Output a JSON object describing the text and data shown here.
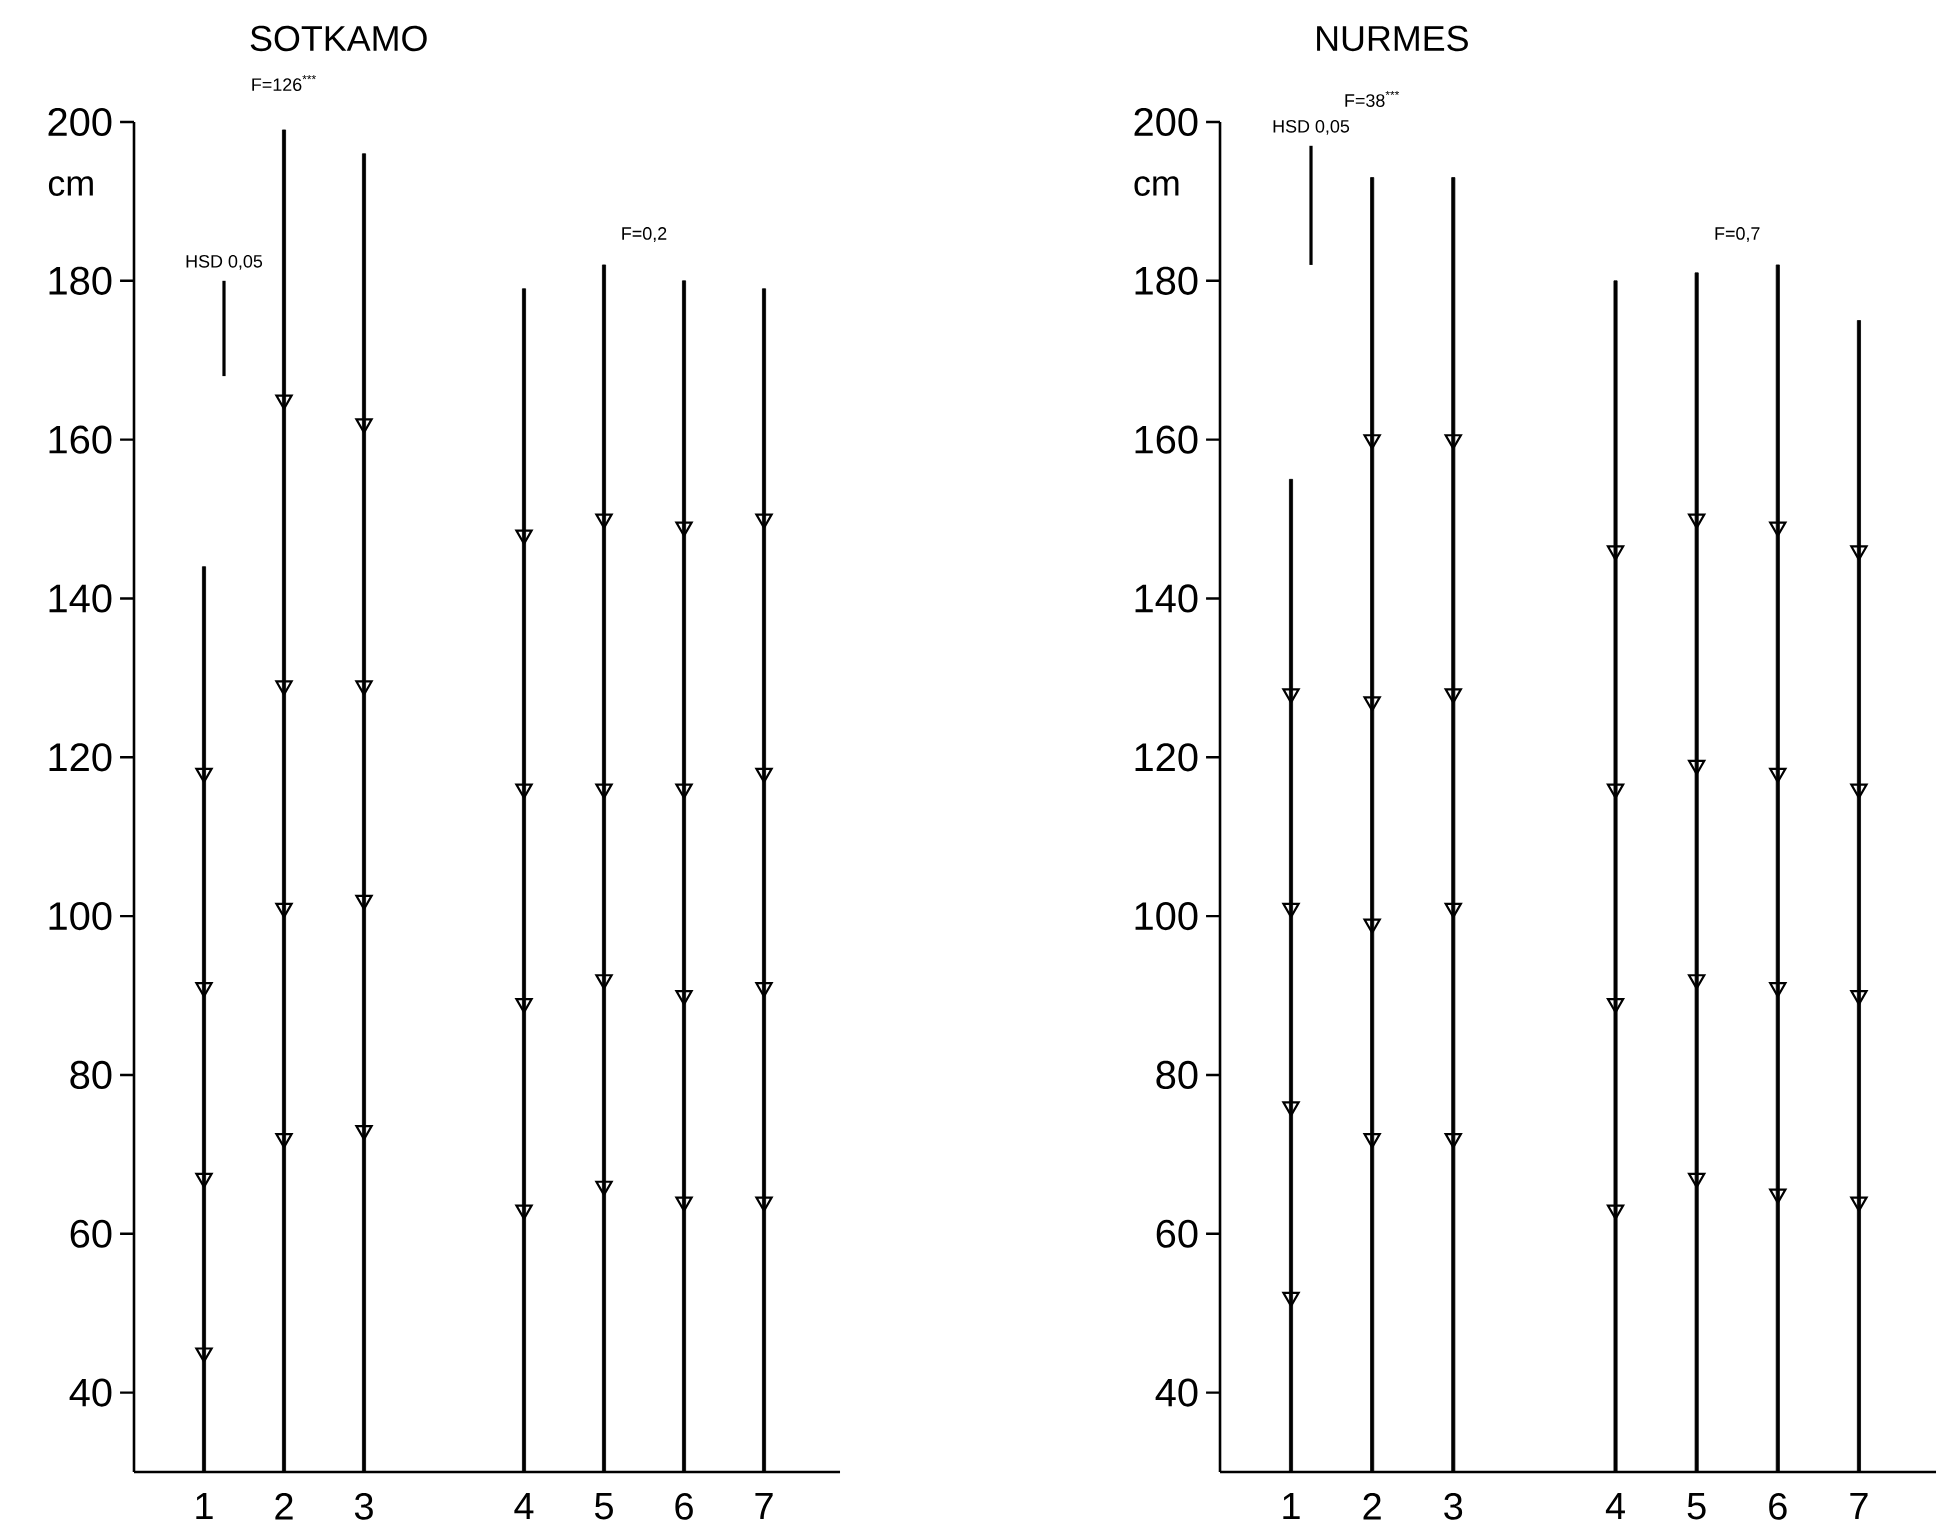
{
  "chart_data": [
    {
      "type": "bar",
      "title": "SOTKAMO",
      "ylabel": "cm",
      "ylim": [
        30,
        200
      ],
      "yticks": [
        40,
        60,
        80,
        100,
        120,
        140,
        160,
        180,
        200
      ],
      "categories": [
        "1",
        "2",
        "3",
        null,
        "4",
        "5",
        "6",
        "7"
      ],
      "marker": "triangle",
      "annotations": [
        "F=126$^{***}$",
        "F=0,2"
      ],
      "series": [
        {
          "type": "bar",
          "color": "#000000",
          "values": [
            144,
            199,
            196,
            null,
            179,
            182,
            180,
            179
          ]
        },
        {
          "type": "scatter",
          "color": "#000000",
          "values": [
            118,
            165,
            162,
            null,
            148,
            150,
            149,
            150
          ]
        },
        {
          "type": "scatter",
          "color": "#000000",
          "values": [
            91,
            129,
            129,
            null,
            116,
            116,
            116,
            118
          ]
        },
        {
          "type": "scatter",
          "color": "#000000",
          "values": [
            67,
            101,
            102,
            null,
            89,
            92,
            90,
            91
          ]
        },
        {
          "type": "scatter",
          "color": "#000000",
          "values": [
            45,
            72,
            73,
            null,
            63,
            66,
            64,
            64
          ]
        },
        {
          "type": "bar",
          "name": "HSD 0,05",
          "color": "#000000",
          "values": [
            12,
            null,
            null,
            null,
            null,
            null,
            null,
            null
          ],
          "base": [
            168,
            null,
            null,
            null,
            null,
            null,
            null,
            null
          ]
        }
      ]
    },
    {
      "type": "bar",
      "title": "NURMES",
      "ylabel": "cm",
      "ylim": [
        30,
        200
      ],
      "yticks": [
        40,
        60,
        80,
        100,
        120,
        140,
        160,
        180,
        200
      ],
      "categories": [
        "1",
        "2",
        "3",
        null,
        "4",
        "5",
        "6",
        "7"
      ],
      "marker": "triangle",
      "annotations": [
        "F=38$^{***}$",
        "F=0,7"
      ],
      "series": [
        {
          "type": "bar",
          "color": "#000000",
          "values": [
            155,
            193,
            193,
            null,
            180,
            181,
            182,
            175
          ]
        },
        {
          "type": "scatter",
          "color": "#000000",
          "values": [
            128,
            160,
            160,
            null,
            146,
            150,
            149,
            146
          ]
        },
        {
          "type": "scatter",
          "color": "#000000",
          "values": [
            101,
            127,
            128,
            null,
            116,
            119,
            118,
            116
          ]
        },
        {
          "type": "scatter",
          "color": "#000000",
          "values": [
            76,
            99,
            101,
            null,
            89,
            92,
            91,
            90
          ]
        },
        {
          "type": "scatter",
          "color": "#000000",
          "values": [
            52,
            72,
            72,
            null,
            63,
            67,
            65,
            64
          ]
        },
        {
          "type": "bar",
          "name": "HSD 0,05",
          "color": "#000000",
          "values": [
            15,
            null,
            null,
            null,
            null,
            null,
            null,
            null
          ],
          "base": [
            182,
            null,
            null,
            null,
            null,
            null,
            null,
            null
          ]
        }
      ]
    }
  ]
}
